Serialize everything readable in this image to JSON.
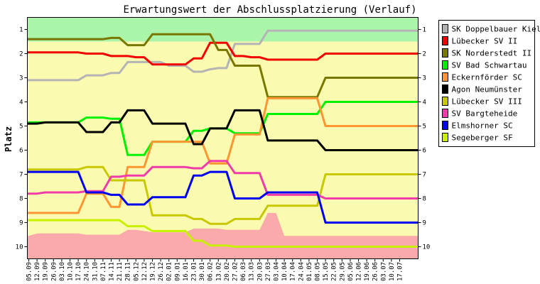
{
  "chart_data": {
    "type": "line",
    "title": "Erwartungswert der Abschlussplatzierung (Verlauf)",
    "ylabel": "Platz",
    "ylim": [
      10.5,
      0.5
    ],
    "y_ticks": [
      "1",
      "2",
      "3",
      "4",
      "5",
      "6",
      "7",
      "8",
      "9",
      "10"
    ],
    "x": [
      "05.09",
      "12.09",
      "19.09",
      "26.09",
      "03.10",
      "10.10",
      "17.10",
      "24.10",
      "31.10",
      "07.11",
      "14.11",
      "21.11",
      "28.11",
      "05.12",
      "12.12",
      "19.12",
      "26.12",
      "02.01",
      "09.01",
      "16.01",
      "23.01",
      "30.01",
      "06.02",
      "13.02",
      "20.02",
      "27.02",
      "06.03",
      "13.03",
      "20.03",
      "27.03",
      "03.04",
      "10.04",
      "17.04",
      "24.04",
      "01.05",
      "08.05",
      "15.05",
      "22.05",
      "29.05",
      "05.06",
      "12.06",
      "19.06",
      "26.06",
      "03.07",
      "10.07",
      "17.07"
    ],
    "bands": [
      {
        "from": 0.5,
        "to": 1.5,
        "color": "#aaf5aa"
      },
      {
        "from": 1.5,
        "to": 10.5,
        "color": "#fafab0"
      }
    ],
    "area_series": {
      "color": "#faaaaa",
      "values": [
        9.55,
        9.45,
        9.45,
        9.45,
        9.45,
        9.45,
        9.45,
        9.5,
        9.5,
        9.5,
        9.5,
        9.5,
        9.3,
        9.3,
        9.35,
        9.4,
        9.4,
        9.4,
        9.4,
        9.4,
        9.25,
        9.25,
        9.25,
        9.25,
        9.3,
        9.3,
        9.3,
        9.3,
        9.3,
        8.6,
        8.6,
        9.55,
        9.55,
        9.55,
        9.55,
        9.55,
        9.55,
        9.55,
        9.55,
        9.55,
        9.55,
        9.55,
        9.55,
        9.55,
        9.55,
        9.55
      ]
    },
    "series": [
      {
        "name": "SK Doppelbauer Kiel",
        "color": "#b4b4b4",
        "values": [
          3.1,
          3.1,
          3.1,
          3.1,
          3.1,
          3.1,
          3.1,
          2.9,
          2.9,
          2.9,
          2.8,
          2.8,
          2.35,
          2.35,
          2.35,
          2.35,
          2.35,
          2.5,
          2.5,
          2.5,
          2.75,
          2.75,
          2.65,
          2.6,
          2.6,
          1.6,
          1.6,
          1.6,
          1.6,
          1.05,
          1.05,
          1.05,
          1.05,
          1.05,
          1.05,
          1.05,
          1.05,
          1.05,
          1.05,
          1.05,
          1.05,
          1.05,
          1.05,
          1.05,
          1.05,
          1.05
        ]
      },
      {
        "name": "Lübecker SV II",
        "color": "#f00000",
        "values": [
          1.95,
          1.95,
          1.95,
          1.95,
          1.95,
          1.95,
          1.95,
          2.0,
          2.0,
          2.0,
          2.1,
          2.1,
          2.1,
          2.15,
          2.15,
          2.45,
          2.45,
          2.45,
          2.45,
          2.45,
          2.2,
          2.2,
          1.55,
          1.55,
          1.55,
          2.1,
          2.1,
          2.15,
          2.15,
          2.25,
          2.25,
          2.25,
          2.25,
          2.25,
          2.25,
          2.25,
          2.0,
          2.0,
          2.0,
          2.0,
          2.0,
          2.0,
          2.0,
          2.0,
          2.0,
          2.0
        ]
      },
      {
        "name": "SK Norderstedt II",
        "color": "#787800",
        "values": [
          1.4,
          1.4,
          1.4,
          1.4,
          1.4,
          1.4,
          1.4,
          1.4,
          1.4,
          1.4,
          1.35,
          1.35,
          1.65,
          1.65,
          1.65,
          1.2,
          1.2,
          1.2,
          1.2,
          1.2,
          1.2,
          1.2,
          1.2,
          1.85,
          1.85,
          2.5,
          2.5,
          2.5,
          2.5,
          3.8,
          3.8,
          3.8,
          3.8,
          3.8,
          3.8,
          3.8,
          3.0,
          3.0,
          3.0,
          3.0,
          3.0,
          3.0,
          3.0,
          3.0,
          3.0,
          3.0
        ]
      },
      {
        "name": "SV Bad Schwartau",
        "color": "#00f000",
        "values": [
          4.85,
          4.85,
          4.85,
          4.85,
          4.85,
          4.85,
          4.85,
          4.65,
          4.65,
          4.65,
          4.7,
          4.7,
          6.2,
          6.2,
          6.2,
          5.65,
          5.65,
          5.65,
          5.65,
          5.65,
          5.2,
          5.2,
          5.1,
          5.1,
          5.1,
          5.3,
          5.3,
          5.3,
          5.3,
          4.5,
          4.5,
          4.5,
          4.5,
          4.5,
          4.5,
          4.5,
          4.0,
          4.0,
          4.0,
          4.0,
          4.0,
          4.0,
          4.0,
          4.0,
          4.0,
          4.0
        ]
      },
      {
        "name": "Eckernförder SC",
        "color": "#ff9632",
        "values": [
          8.6,
          8.6,
          8.6,
          8.6,
          8.6,
          8.6,
          8.6,
          7.8,
          7.8,
          7.8,
          8.35,
          8.35,
          6.7,
          6.7,
          6.7,
          5.65,
          5.65,
          5.65,
          5.65,
          5.65,
          5.65,
          5.65,
          6.55,
          6.55,
          6.55,
          5.35,
          5.35,
          5.35,
          5.35,
          3.85,
          3.85,
          3.85,
          3.85,
          3.85,
          3.85,
          3.85,
          5.0,
          5.0,
          5.0,
          5.0,
          5.0,
          5.0,
          5.0,
          5.0,
          5.0,
          5.0
        ]
      },
      {
        "name": "Agon Neumünster",
        "color": "#000000",
        "values": [
          4.9,
          4.9,
          4.85,
          4.85,
          4.85,
          4.85,
          4.85,
          5.25,
          5.25,
          5.25,
          4.85,
          4.85,
          4.35,
          4.35,
          4.35,
          4.9,
          4.9,
          4.9,
          4.9,
          4.9,
          5.75,
          5.75,
          5.1,
          5.1,
          5.1,
          4.35,
          4.35,
          4.35,
          4.35,
          5.6,
          5.6,
          5.6,
          5.6,
          5.6,
          5.6,
          5.6,
          6.0,
          6.0,
          6.0,
          6.0,
          6.0,
          6.0,
          6.0,
          6.0,
          6.0,
          6.0
        ]
      },
      {
        "name": "Lübecker SV III",
        "color": "#c8c800",
        "values": [
          6.8,
          6.8,
          6.8,
          6.8,
          6.8,
          6.8,
          6.8,
          6.7,
          6.7,
          6.7,
          7.25,
          7.25,
          7.25,
          7.25,
          7.25,
          8.7,
          8.7,
          8.7,
          8.7,
          8.7,
          8.85,
          8.85,
          9.05,
          9.05,
          9.05,
          8.85,
          8.85,
          8.85,
          8.85,
          8.3,
          8.3,
          8.3,
          8.3,
          8.3,
          8.3,
          8.3,
          7.0,
          7.0,
          7.0,
          7.0,
          7.0,
          7.0,
          7.0,
          7.0,
          7.0,
          7.0
        ]
      },
      {
        "name": "SV Bargteheide",
        "color": "#f03caa",
        "values": [
          7.8,
          7.8,
          7.75,
          7.75,
          7.75,
          7.75,
          7.75,
          7.7,
          7.7,
          7.7,
          7.1,
          7.1,
          7.05,
          7.05,
          7.05,
          6.7,
          6.7,
          6.7,
          6.7,
          6.7,
          6.75,
          6.75,
          6.45,
          6.45,
          6.45,
          6.95,
          6.95,
          6.95,
          6.95,
          7.85,
          7.85,
          7.85,
          7.85,
          7.85,
          7.85,
          7.85,
          8.0,
          8.0,
          8.0,
          8.0,
          8.0,
          8.0,
          8.0,
          8.0,
          8.0,
          8.0
        ]
      },
      {
        "name": "Elmshorner SC",
        "color": "#0000f0",
        "values": [
          6.9,
          6.9,
          6.9,
          6.9,
          6.9,
          6.9,
          6.9,
          7.75,
          7.75,
          7.75,
          7.85,
          7.85,
          8.25,
          8.25,
          8.25,
          7.95,
          7.95,
          7.95,
          7.95,
          7.95,
          7.05,
          7.05,
          6.9,
          6.9,
          6.9,
          8.0,
          8.0,
          8.0,
          8.0,
          7.75,
          7.75,
          7.75,
          7.75,
          7.75,
          7.75,
          7.75,
          9.0,
          9.0,
          9.0,
          9.0,
          9.0,
          9.0,
          9.0,
          9.0,
          9.0,
          9.0
        ]
      },
      {
        "name": "Segeberger SF",
        "color": "#c8f000",
        "values": [
          8.9,
          8.9,
          8.9,
          8.9,
          8.9,
          8.9,
          8.9,
          8.9,
          8.9,
          8.9,
          8.9,
          8.9,
          9.15,
          9.15,
          9.15,
          9.35,
          9.35,
          9.35,
          9.35,
          9.35,
          9.75,
          9.75,
          9.95,
          9.95,
          9.95,
          10.0,
          10.0,
          10.0,
          10.0,
          10.0,
          10.0,
          10.0,
          10.0,
          10.0,
          10.0,
          10.0,
          10.0,
          10.0,
          10.0,
          10.0,
          10.0,
          10.0,
          10.0,
          10.0,
          10.0,
          10.0
        ]
      }
    ],
    "legend_position": "right"
  }
}
